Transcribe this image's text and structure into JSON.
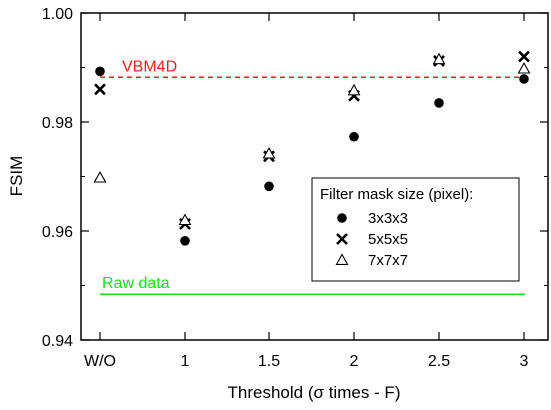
{
  "chart_data": {
    "type": "scatter",
    "xlabel": "Threshold (σ times - F)",
    "ylabel": "FSIM",
    "categories": [
      "W/O",
      "1",
      "1.5",
      "2",
      "2.5",
      "3"
    ],
    "ylim": [
      0.94,
      1.0
    ],
    "yticks": [
      "0.94",
      "0.96",
      "0.98",
      "1.00"
    ],
    "grid": false,
    "legend": {
      "title": "Filter mask size (pixel):",
      "placement": "right-center"
    },
    "series": [
      {
        "name": "3x3x3",
        "marker": "circle",
        "values": [
          0.9893,
          0.9582,
          0.9682,
          0.9773,
          0.9835,
          0.9879
        ]
      },
      {
        "name": "5x5x5",
        "marker": "x",
        "values": [
          0.986,
          0.9613,
          0.9737,
          0.9848,
          0.9912,
          0.992
        ]
      },
      {
        "name": "7x7x7",
        "marker": "triangle",
        "values": [
          0.9698,
          0.962,
          0.9742,
          0.9858,
          0.9915,
          0.9898
        ]
      }
    ],
    "reference_lines": [
      {
        "label": "VBM4D",
        "value": 0.9882,
        "style": "dashed",
        "color": "#e8231f"
      },
      {
        "label": "Raw data",
        "value": 0.9484,
        "style": "solid",
        "color": "#18e11a"
      }
    ]
  }
}
